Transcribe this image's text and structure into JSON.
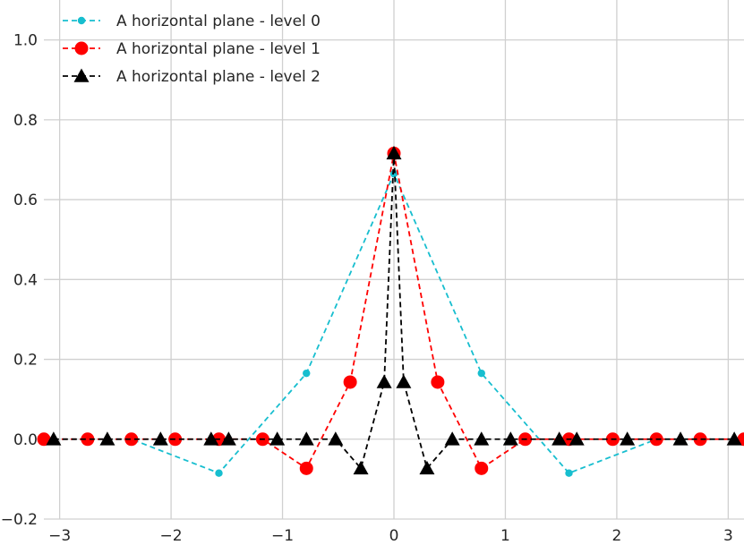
{
  "chart_data": {
    "type": "line",
    "title": "",
    "xlabel": "",
    "ylabel": "",
    "xlim": [
      -3.1416,
      3.1416
    ],
    "ylim": [
      -0.2,
      1.1
    ],
    "grid": true,
    "legend_position": "top-left",
    "x_ticks": [
      {
        "value": -3,
        "label": "−3"
      },
      {
        "value": -2,
        "label": "−2"
      },
      {
        "value": -1,
        "label": "−1"
      },
      {
        "value": 0,
        "label": "0"
      },
      {
        "value": 1,
        "label": "1"
      },
      {
        "value": 2,
        "label": "2"
      },
      {
        "value": 3,
        "label": "3"
      }
    ],
    "y_ticks": [
      {
        "value": -0.2,
        "label": "−0.2"
      },
      {
        "value": 0.0,
        "label": "0.0"
      },
      {
        "value": 0.2,
        "label": "0.2"
      },
      {
        "value": 0.4,
        "label": "0.4"
      },
      {
        "value": 0.6,
        "label": "0.6"
      },
      {
        "value": 0.8,
        "label": "0.8"
      },
      {
        "value": 1.0,
        "label": "1.0"
      }
    ],
    "series": [
      {
        "name": "A horizontal plane - level 0",
        "color": "#17becf",
        "marker": "circle-small",
        "x": [
          -3.1416,
          -2.3562,
          -1.5708,
          -0.7854,
          0.0,
          0.7854,
          1.5708,
          2.3562,
          3.1416
        ],
        "y": [
          0.0,
          0.0,
          -0.085,
          0.165,
          0.665,
          0.165,
          -0.085,
          0.0,
          0.0
        ]
      },
      {
        "name": "A horizontal plane - level 1",
        "color": "#ff0000",
        "marker": "circle-large",
        "x": [
          -3.1416,
          -2.7489,
          -2.3562,
          -1.9635,
          -1.5708,
          -1.1781,
          -0.7854,
          -0.3927,
          0.0,
          0.3927,
          0.7854,
          1.1781,
          1.5708,
          1.9635,
          2.3562,
          2.7489,
          3.1416
        ],
        "y": [
          0.0,
          0.0,
          0.0,
          0.0,
          0.0,
          0.0,
          -0.073,
          0.143,
          0.716,
          0.143,
          -0.073,
          0.0,
          0.0,
          0.0,
          0.0,
          0.0,
          0.0
        ]
      },
      {
        "name": "A horizontal plane - level 2",
        "color": "#000000",
        "marker": "triangle",
        "x": [
          -3.0543,
          -2.5718,
          -2.0944,
          -1.6406,
          -1.4835,
          -1.0472,
          -0.7854,
          -0.5236,
          -0.2967,
          -0.0873,
          0.0,
          0.0873,
          0.2967,
          0.5236,
          0.7854,
          1.0472,
          1.4835,
          1.6406,
          2.0944,
          2.5718,
          3.0543
        ],
        "y": [
          0.0,
          0.0,
          0.0,
          0.0,
          0.0,
          0.0,
          0.0,
          0.0,
          -0.073,
          0.143,
          0.716,
          0.143,
          -0.073,
          0.0,
          0.0,
          0.0,
          0.0,
          0.0,
          0.0,
          0.0,
          0.0
        ]
      }
    ]
  }
}
